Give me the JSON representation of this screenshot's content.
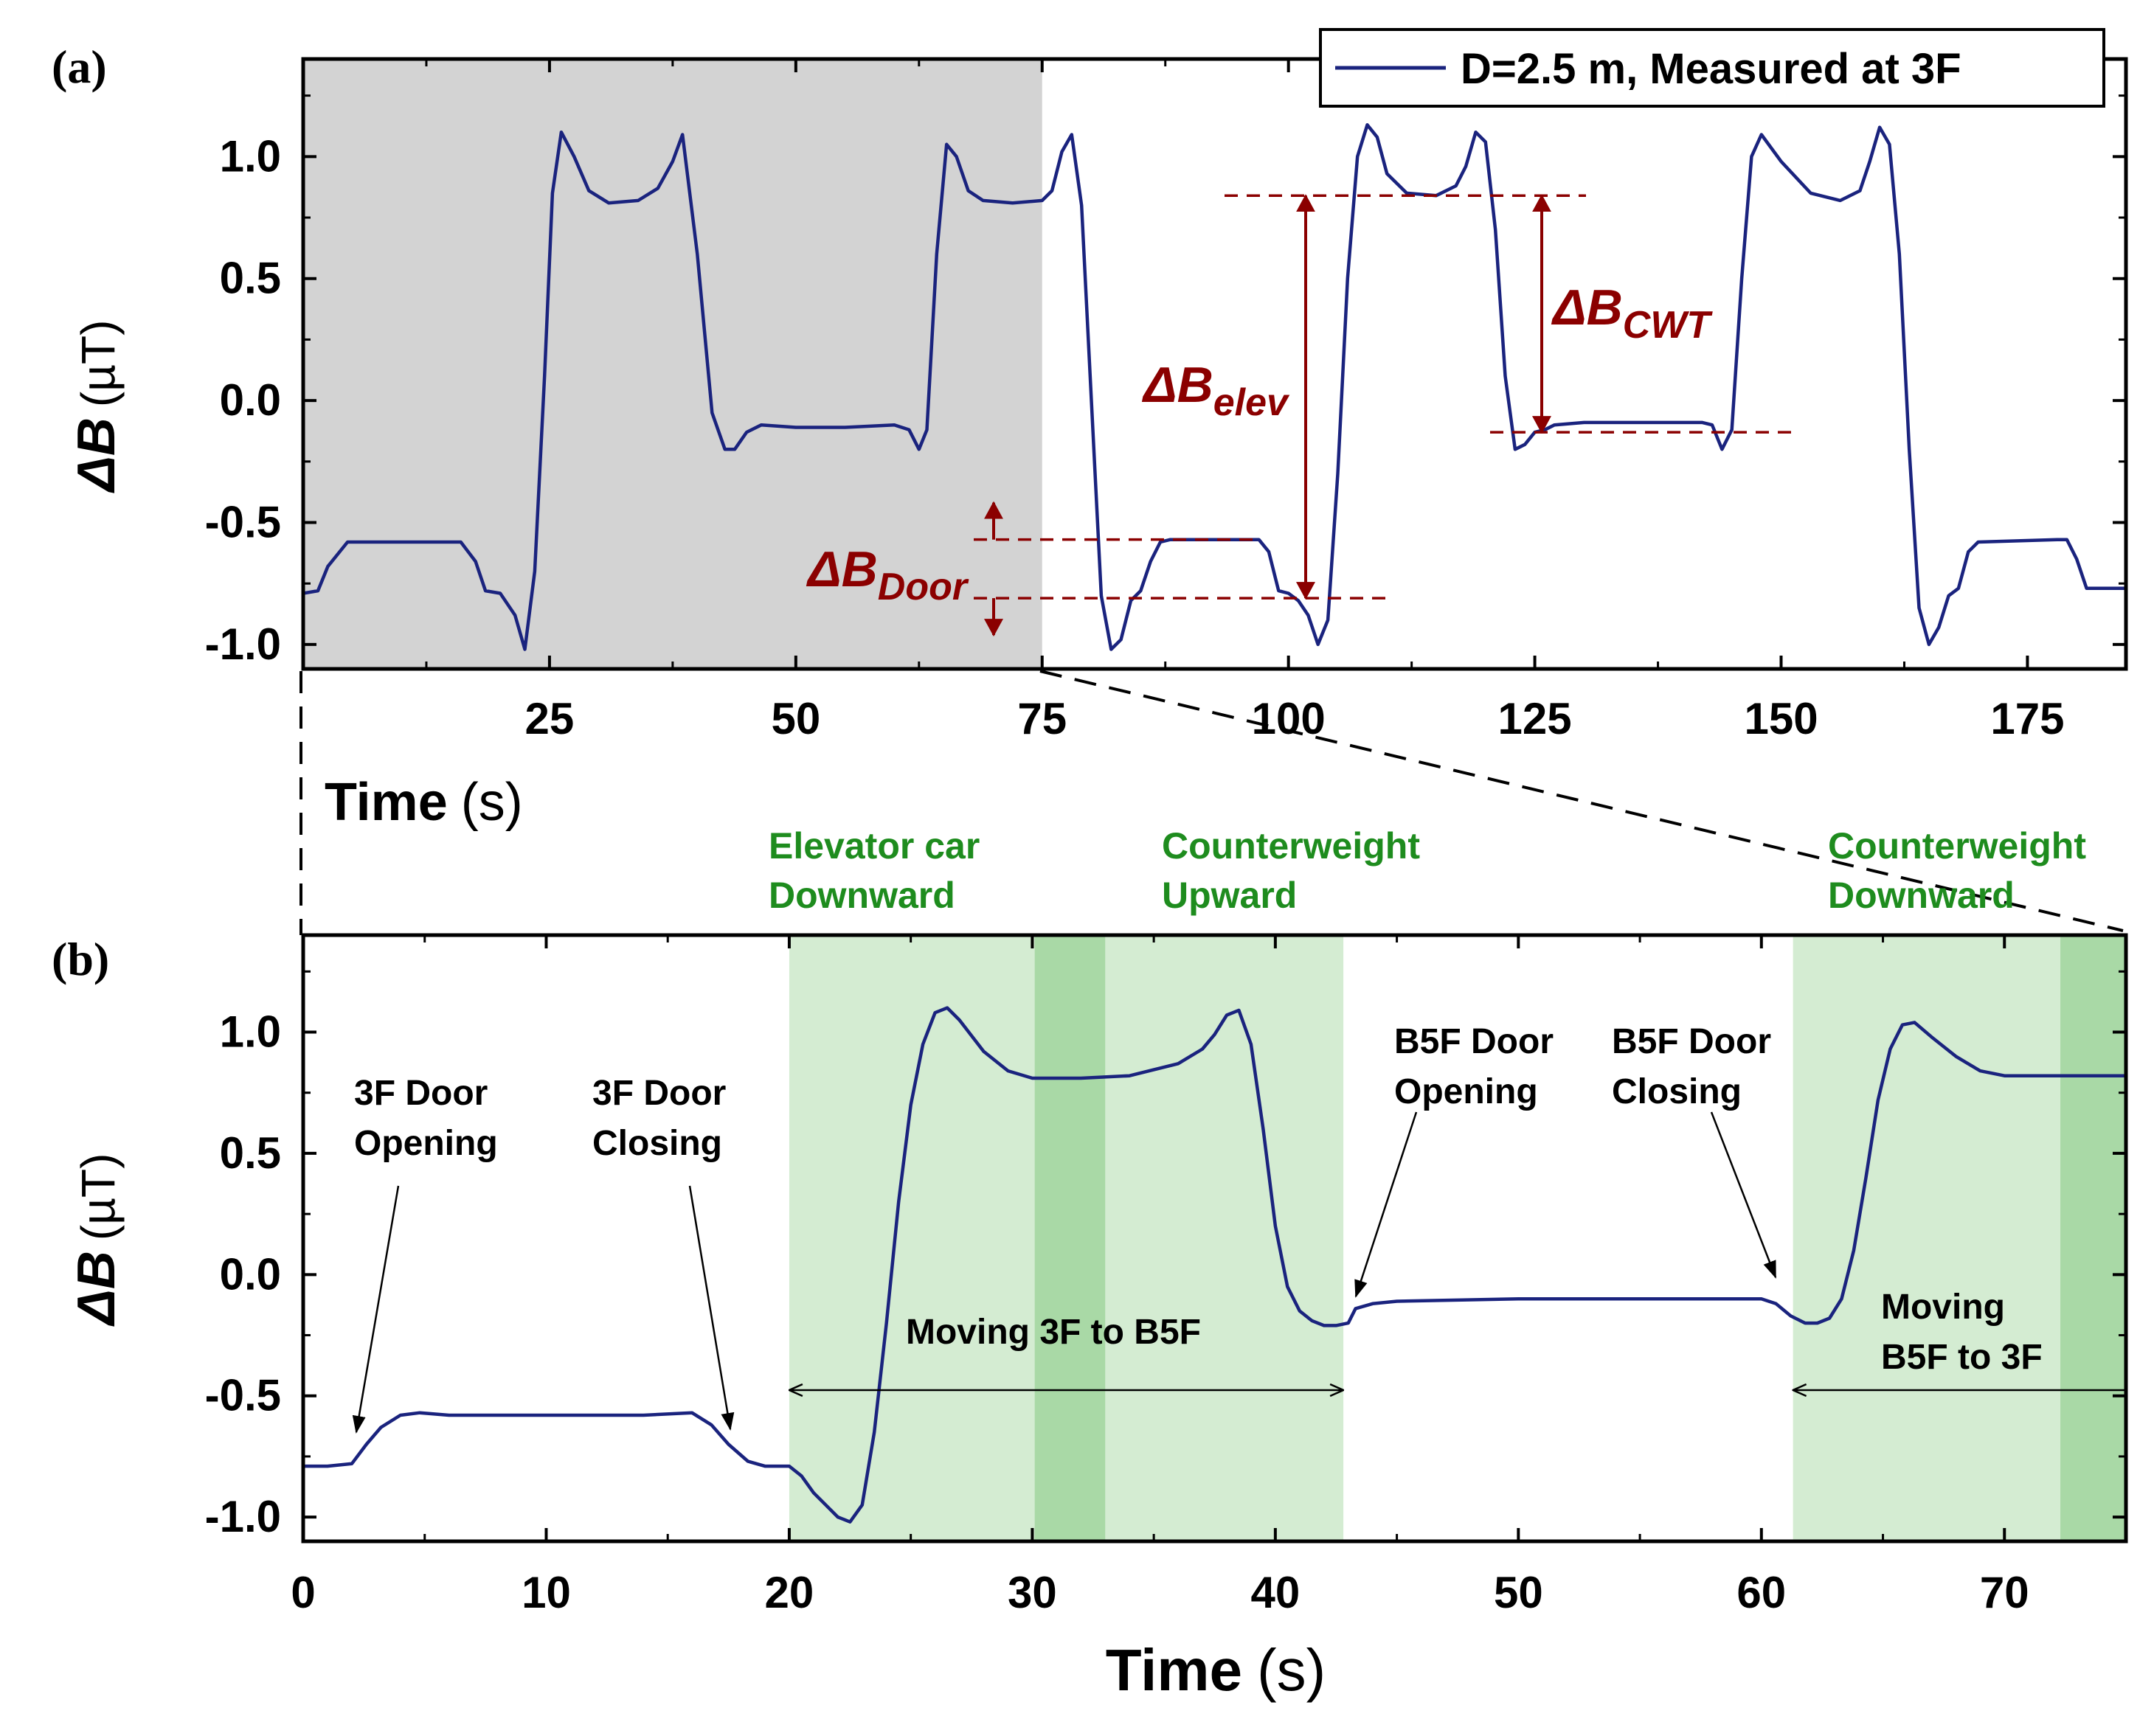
{
  "figure": {
    "panel_a_label": "(a)",
    "panel_b_label": "(b)",
    "colors": {
      "trace": "#1a237e",
      "annotation": "#8b0000",
      "shade_gray": "#d3d3d3",
      "shade_green_light": "#d4ecd2",
      "shade_green_dark": "#a9d9a6",
      "phase_text": "#1e8c1e"
    }
  },
  "chart_data": [
    {
      "id": "panel_a",
      "type": "line",
      "title": "",
      "xlabel": "Time",
      "xunit": "(s)",
      "ylabel": "ΔB",
      "yunit": "(µT)",
      "xlim": [
        0,
        185
      ],
      "ylim": [
        -1.1,
        1.4
      ],
      "xticks": [
        25,
        50,
        75,
        100,
        125,
        150,
        175
      ],
      "xticklabels": [
        "25",
        "50",
        "75",
        "100",
        "125",
        "150",
        "175"
      ],
      "yticks": [
        -1.0,
        -0.5,
        0.0,
        0.5,
        1.0
      ],
      "yticklabels": [
        "-1.0",
        "-0.5",
        "0.0",
        "0.5",
        "1.0"
      ],
      "legend": {
        "label": "D=2.5 m, Measured at 3F",
        "position": "top-right"
      },
      "zoom_region": {
        "x": [
          0,
          75
        ],
        "color": "gray"
      },
      "series": [
        {
          "name": "D=2.5 m, Measured at 3F",
          "x": [
            0,
            1.5,
            2.5,
            4.5,
            16,
            17.5,
            18.5,
            20,
            21.5,
            22.5,
            23.5,
            24.5,
            25.3,
            26.2,
            27.5,
            29,
            31,
            34,
            36,
            37.5,
            38.5,
            40,
            41.5,
            42.8,
            43.8,
            45,
            46.5,
            50,
            55,
            60,
            61.5,
            62.5,
            63.3,
            64.3,
            65.3,
            66.3,
            67.5,
            69,
            72,
            75,
            76,
            77,
            78,
            79,
            80,
            81,
            82,
            83,
            84,
            85,
            86,
            87,
            88,
            97,
            98,
            99,
            100,
            101,
            102,
            103,
            104,
            105,
            106,
            107,
            108,
            109,
            110,
            112,
            115,
            117,
            118,
            119,
            120,
            121,
            122,
            123,
            124,
            125,
            126,
            127,
            130,
            142,
            143,
            144,
            145,
            146,
            147,
            148,
            150,
            153,
            156,
            158,
            159,
            160,
            161,
            162,
            163,
            164,
            165,
            166,
            167,
            168,
            169,
            170,
            178,
            179,
            180,
            181,
            185
          ],
          "y": [
            -0.79,
            -0.78,
            -0.68,
            -0.58,
            -0.58,
            -0.66,
            -0.78,
            -0.79,
            -0.88,
            -1.02,
            -0.7,
            0.1,
            0.85,
            1.1,
            1.0,
            0.86,
            0.81,
            0.82,
            0.87,
            0.98,
            1.09,
            0.6,
            -0.05,
            -0.2,
            -0.2,
            -0.13,
            -0.1,
            -0.11,
            -0.11,
            -0.1,
            -0.12,
            -0.2,
            -0.12,
            0.6,
            1.05,
            1.0,
            0.86,
            0.82,
            0.81,
            0.82,
            0.86,
            1.02,
            1.09,
            0.8,
            0.0,
            -0.8,
            -1.02,
            -0.98,
            -0.82,
            -0.78,
            -0.66,
            -0.58,
            -0.57,
            -0.57,
            -0.62,
            -0.78,
            -0.79,
            -0.82,
            -0.88,
            -1.0,
            -0.9,
            -0.3,
            0.5,
            1.0,
            1.13,
            1.08,
            0.93,
            0.85,
            0.84,
            0.88,
            0.96,
            1.1,
            1.06,
            0.7,
            0.1,
            -0.2,
            -0.18,
            -0.13,
            -0.12,
            -0.1,
            -0.09,
            -0.09,
            -0.1,
            -0.2,
            -0.12,
            0.5,
            1.0,
            1.09,
            0.98,
            0.85,
            0.82,
            0.86,
            0.98,
            1.12,
            1.05,
            0.6,
            -0.2,
            -0.85,
            -1.0,
            -0.93,
            -0.8,
            -0.77,
            -0.62,
            -0.58,
            -0.57,
            -0.57,
            -0.65,
            -0.77,
            -0.77
          ]
        }
      ],
      "annotations": [
        {
          "label": "ΔB",
          "subscript": "Door",
          "y_from": -0.57,
          "y_to": -0.81
        },
        {
          "label": "ΔB",
          "subscript": "elev",
          "y_from": 0.84,
          "y_to": -0.81
        },
        {
          "label": "ΔB",
          "subscript": "CWT",
          "y_from": 0.84,
          "y_to": -0.13
        }
      ]
    },
    {
      "id": "panel_b",
      "type": "line",
      "title": "",
      "xlabel": "Time",
      "xunit": "(s)",
      "ylabel": "ΔB",
      "yunit": "(µT)",
      "xlim": [
        0,
        75
      ],
      "ylim": [
        -1.1,
        1.4
      ],
      "xticks": [
        0,
        10,
        20,
        30,
        40,
        50,
        60,
        70
      ],
      "xticklabels": [
        "0",
        "10",
        "20",
        "30",
        "40",
        "50",
        "60",
        "70"
      ],
      "yticks": [
        -1.0,
        -0.5,
        0.0,
        0.5,
        1.0
      ],
      "yticklabels": [
        "-1.0",
        "-0.5",
        "0.0",
        "0.5",
        "1.0"
      ],
      "shaded_regions": [
        {
          "x": [
            20,
            42.8
          ],
          "shade": "light"
        },
        {
          "x": [
            30.1,
            33
          ],
          "shade": "dark"
        },
        {
          "x": [
            61.3,
            75
          ],
          "shade": "light"
        },
        {
          "x": [
            72.3,
            75
          ],
          "shade": "dark"
        }
      ],
      "phase_labels": [
        {
          "lines": [
            "Elevator car",
            "Downward"
          ]
        },
        {
          "lines": [
            "Counterweight",
            "Upward"
          ]
        },
        {
          "lines": [
            "Counterweight",
            "Downward"
          ]
        }
      ],
      "event_labels": [
        {
          "lines": [
            "3F Door",
            "Opening"
          ]
        },
        {
          "lines": [
            "3F Door",
            "Closing"
          ]
        },
        {
          "lines": [
            "B5F Door",
            "Opening"
          ]
        },
        {
          "lines": [
            "B5F Door",
            "Closing"
          ]
        }
      ],
      "span_labels": [
        {
          "lines": [
            "Moving 3F to B5F"
          ],
          "x_from": 20,
          "x_to": 42.8
        },
        {
          "lines": [
            "Moving",
            "B5F to 3F"
          ],
          "x_from": 61.3,
          "x_to": 75
        }
      ],
      "series": [
        {
          "name": "D=2.5 m, Measured at 3F",
          "x": [
            0,
            1,
            2,
            2.6,
            3.2,
            4,
            4.8,
            6,
            8,
            10,
            12,
            14,
            16,
            16.8,
            17.5,
            18.3,
            19,
            20,
            20.5,
            21,
            21.5,
            22,
            22.5,
            23,
            23.5,
            24,
            24.5,
            25,
            25.5,
            26,
            26.5,
            27,
            28,
            29,
            30,
            32,
            34,
            36,
            37,
            37.5,
            38,
            38.5,
            39,
            39.5,
            40,
            40.5,
            41,
            41.5,
            42,
            42.5,
            43,
            43.3,
            44,
            45,
            50,
            55,
            60,
            60.6,
            61.2,
            61.8,
            62.3,
            62.8,
            63.3,
            63.8,
            64.3,
            64.8,
            65.3,
            65.8,
            66.3,
            67,
            68,
            69,
            70,
            72,
            75
          ],
          "y": [
            -0.79,
            -0.79,
            -0.78,
            -0.7,
            -0.63,
            -0.58,
            -0.57,
            -0.58,
            -0.58,
            -0.58,
            -0.58,
            -0.58,
            -0.57,
            -0.62,
            -0.7,
            -0.77,
            -0.79,
            -0.79,
            -0.83,
            -0.9,
            -0.95,
            -1.0,
            -1.02,
            -0.95,
            -0.65,
            -0.2,
            0.3,
            0.7,
            0.95,
            1.08,
            1.1,
            1.05,
            0.92,
            0.84,
            0.81,
            0.81,
            0.82,
            0.87,
            0.93,
            0.99,
            1.07,
            1.09,
            0.95,
            0.6,
            0.2,
            -0.05,
            -0.15,
            -0.19,
            -0.21,
            -0.21,
            -0.2,
            -0.14,
            -0.12,
            -0.11,
            -0.1,
            -0.1,
            -0.1,
            -0.12,
            -0.17,
            -0.2,
            -0.2,
            -0.18,
            -0.1,
            0.1,
            0.4,
            0.72,
            0.93,
            1.03,
            1.04,
            0.98,
            0.9,
            0.84,
            0.82,
            0.82,
            0.82
          ]
        }
      ]
    }
  ]
}
